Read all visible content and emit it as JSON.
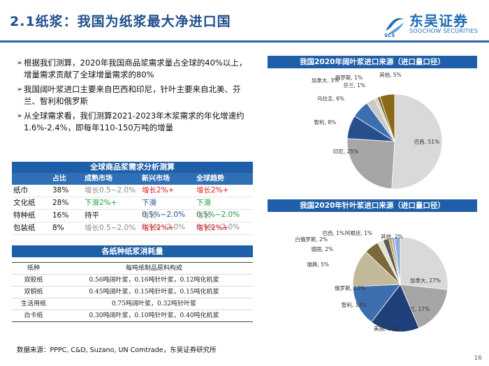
{
  "header": {
    "title": "2.1纸浆：我国为纸浆最大净进口国",
    "logo_cn": "东吴证券",
    "logo_en": "SOOCHOW SECURITIES",
    "logo_mark": "SCS"
  },
  "bullets": [
    "根据我们测算，2020年我国商品浆需求量占全球的40%以上，增量需求贡献了全球增量需求的80%",
    "我国阔叶浆进口主要来自巴西和印尼，针叶主要来自北美、芬兰、智利和俄罗斯",
    "从全球需求看，我们测算2021-2023年木浆需求的年化增速约1.6%-2.4%，即每年110-150万吨的增量"
  ],
  "demand_table": {
    "title": "全球商品浆需求分析测算",
    "columns": [
      "",
      "占比",
      "成熟市场",
      "新兴市场",
      "全球趋势"
    ],
    "rows": [
      {
        "name": "纸巾",
        "share": "38%",
        "mature": "增长0.5~2.0%",
        "emerging": "增长2%+",
        "global": "增长2%+"
      },
      {
        "name": "文化纸",
        "share": "28%",
        "mature": "下滑2%+",
        "emerging": "下滑0.5%~2.0%",
        "global": "下滑0.5%~2.0%"
      },
      {
        "name": "特种纸",
        "share": "16%",
        "mature": "持平",
        "emerging": "增长0.5%~2.0%",
        "global": "增长0.5%~2.0%"
      },
      {
        "name": "包装纸",
        "share": "8%",
        "mature": "增长0.5~2.0%",
        "emerging": "增长2%+",
        "global": "增长2%+"
      }
    ],
    "colors": {
      "grey": "#8c8c8c",
      "red": "#e02020",
      "green": "#22a040",
      "blue": "#1f4fa0"
    }
  },
  "consumption_table": {
    "title": "各纸种纸浆消耗量",
    "header": [
      "纸种",
      "每吨纸制品原料构成"
    ],
    "rows": [
      [
        "双胶纸",
        "0.56吨阔叶浆，0.16吨针叶浆，0.12吨化机浆"
      ],
      [
        "双铜纸",
        "0.45吨阔叶浆，0.15吨针叶浆，0.15吨化机浆"
      ],
      [
        "生活用纸",
        "0.75吨阔叶浆，0.32吨针叶浆"
      ],
      [
        "白卡纸",
        "0.30吨阔叶浆，0.10吨针叶浆，0.40吨化机浆"
      ]
    ]
  },
  "source": "数据来源：PPPC, C&D, Suzano, UN Comtrade，东吴证券研究所",
  "page_number": "16",
  "chart_data": [
    {
      "type": "pie",
      "title": "我国2020年阔叶浆进口来源（进口量口径）",
      "slices": [
        {
          "label": "巴西, 51%",
          "value": 51,
          "color": "#d9d9d9"
        },
        {
          "label": "印尼, 25%",
          "value": 25,
          "color": "#a6a6a6"
        },
        {
          "label": "智利, 8%",
          "value": 8,
          "color": "#264f8c"
        },
        {
          "label": "乌拉圭, 6%",
          "value": 6,
          "color": "#3d6fb0"
        },
        {
          "label": "加拿大, 3%",
          "value": 3,
          "color": "#c9c9c9"
        },
        {
          "label": "俄罗斯, 1%",
          "value": 1,
          "color": "#dcd3b2"
        },
        {
          "label": "芬兰, 1%",
          "value": 1,
          "color": "#7a6a3a"
        },
        {
          "label": "其他, 5%",
          "value": 5,
          "color": "#8a6a18"
        }
      ]
    },
    {
      "type": "pie",
      "title": "我国2020年针叶浆进口来源（进口量口径）",
      "slices": [
        {
          "label": "加拿大, 27%",
          "value": 27,
          "color": "#d9d9d9"
        },
        {
          "label": "芬兰, 17%",
          "value": 17,
          "color": "#a6a6a6"
        },
        {
          "label": "美国, 17%",
          "value": 17,
          "color": "#1f3f78"
        },
        {
          "label": "智利, 14%",
          "value": 14,
          "color": "#3d6fb0"
        },
        {
          "label": "俄罗斯, 13%",
          "value": 13,
          "color": "#c2b99a"
        },
        {
          "label": "瑞典, 5%",
          "value": 5,
          "color": "#7a6a3a"
        },
        {
          "label": "德国, 2%",
          "value": 2,
          "color": "#e4e0d0"
        },
        {
          "label": "白俄罗斯, 2%",
          "value": 2,
          "color": "#5a5a5a"
        },
        {
          "label": "巴西, 1%",
          "value": 1,
          "color": "#c9a23a"
        },
        {
          "label": "阿根廷, 1%",
          "value": 1,
          "color": "#9fb6d8"
        },
        {
          "label": "其他, 2%",
          "value": 2,
          "color": "#8fb0d8"
        }
      ]
    }
  ]
}
